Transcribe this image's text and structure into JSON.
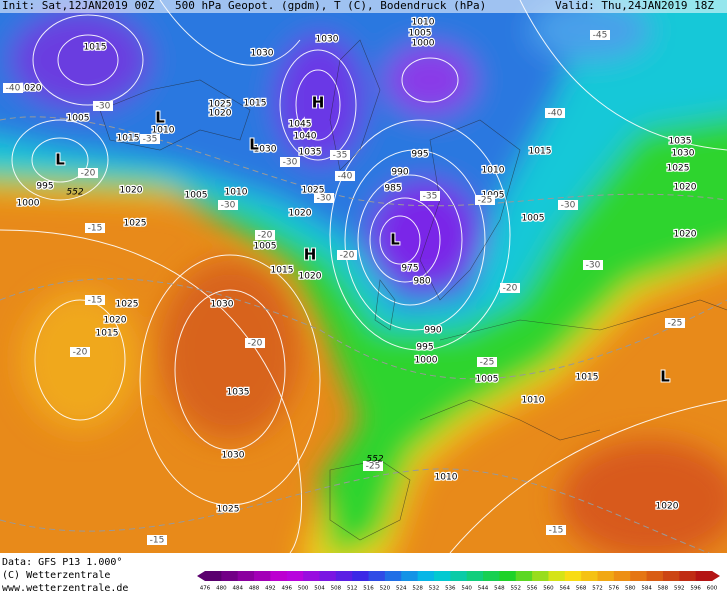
{
  "header": {
    "init": "Init: Sat,12JAN2019 00Z",
    "title": "500 hPa Geopot. (gpdm), T (C), Bodendruck (hPa)",
    "valid": "Valid: Thu,24JAN2019 18Z"
  },
  "map": {
    "pressure_labels": [
      1015,
      1020,
      1005,
      1015,
      1010,
      995,
      1000,
      1020,
      1025,
      1005,
      1010,
      1025,
      1020,
      1015,
      1030,
      1030,
      1045,
      1040,
      1030,
      1035,
      1025,
      1020,
      1005,
      1015,
      1020,
      1010,
      1005,
      1000,
      995,
      990,
      985,
      975,
      980,
      990,
      995,
      1000,
      1010,
      1005,
      1005,
      1015,
      1035,
      1030,
      1025,
      1020,
      1020,
      1005,
      1015,
      1010,
      1025,
      1020,
      1015,
      1030,
      1035,
      1030,
      1025,
      1010,
      1020
    ],
    "temperature_labels": [
      -45,
      -40,
      -30,
      -35,
      -30,
      -35,
      -40,
      -35,
      -25,
      -30,
      -30,
      -20,
      -15,
      -30,
      -20,
      -30,
      -20,
      -20,
      -25,
      -25,
      -15,
      -20,
      -20,
      -25,
      -15,
      -15,
      -40
    ],
    "height_labels": [
      552,
      552
    ],
    "pressure_centers": [
      "L",
      "L",
      "L",
      "H",
      "H",
      "L",
      "L"
    ]
  },
  "footer": {
    "data": "Data: GFS P13 1.000°",
    "copyright": "(C) Wetterzentrale",
    "url": "www.wetterzentrale.de"
  },
  "colorbar": {
    "labels": [
      476,
      480,
      484,
      488,
      492,
      496,
      500,
      504,
      508,
      512,
      516,
      520,
      524,
      528,
      532,
      536,
      540,
      544,
      548,
      552,
      556,
      560,
      564,
      568,
      572,
      576,
      580,
      584,
      588,
      592,
      596,
      600
    ]
  }
}
